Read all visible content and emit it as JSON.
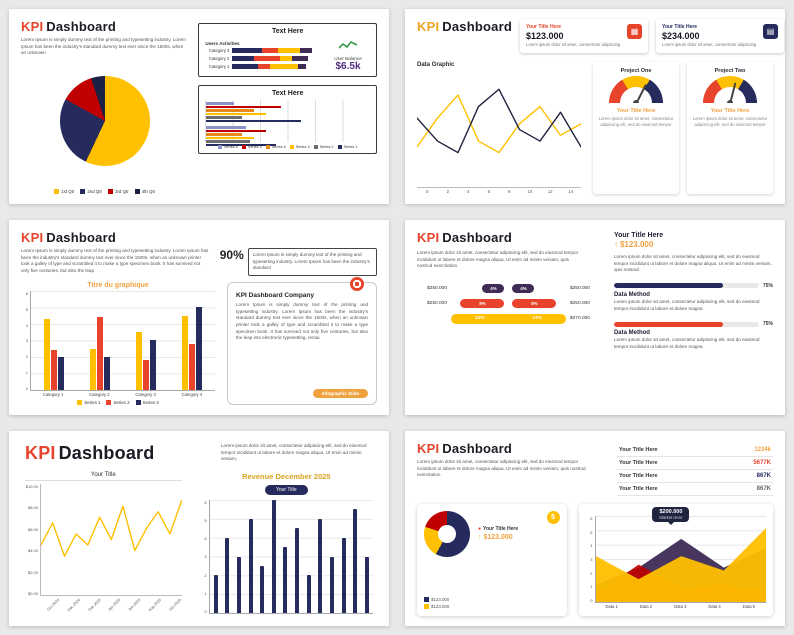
{
  "palette": {
    "red": "#E8432B",
    "dark_red": "#C00000",
    "yellow": "#FFC000",
    "navy": "#252B5C",
    "purple": "#3F2B56",
    "orange": "#F0A241",
    "green": "#3A9B46"
  },
  "slides": {
    "s1": {
      "title_accent": "KPI",
      "title_rest": "Dashboard",
      "title_color": "#E8432B",
      "body": "Lorem Ipsum is simply dummy text of the printing and typesetting industry. Lorem Ipsum has been the industry's standard dummy text ever since the 1500s, when an unknown",
      "box1_title": "Text Here",
      "users_activities_label": "Users Activities",
      "user_balance_label": "User Balance",
      "user_balance_value": "$6.5k",
      "box2_title": "Text Here"
    },
    "s2": {
      "title_accent": "KPI",
      "title_rest": "Dashboard",
      "title_color": "#EFA426",
      "data_graphic_label": "Data Graphic",
      "stats": [
        {
          "title": "Your Title Here",
          "value": "$123.000",
          "body": "Lorem ipsum dolor sit amet, consectetur adipiscing",
          "color": "#E8432B",
          "icon_bg": "#E8432B"
        },
        {
          "title": "Your Title Here",
          "value": "$234.000",
          "body": "Lorem ipsum dolor sit amet, consectetur adipiscing",
          "color": "#252B5C",
          "icon_bg": "#252B5C"
        }
      ],
      "projects": [
        {
          "title": "Project One",
          "subtitle": "Your Title Here",
          "body": "Lorem ipsum dolor sit amet, consectetur adipiscing elit, sed do eiusmod tempor"
        },
        {
          "title": "Project Two",
          "subtitle": "Your Title Here",
          "body": "Lorem ipsum dolor sit amet, consectetur adipiscing elit, sed do eiusmod tempor"
        }
      ]
    },
    "s3": {
      "title_accent": "KPI",
      "title_rest": "Dashboard",
      "title_color": "#E8432B",
      "body": "Lorem Ipsum is simply dummy text of the printing and typesetting industry. Lorem Ipsum has been the industry's standard dummy text ever since the 1500s, when an unknown printer took a galley of type and scrambled it to make a type specimen book. It has survived not only five centuries, but also the leap",
      "percent": "90%",
      "percent_body": "Lorem Ipsum is simply dummy text of the printing and typesetting industry. Lorem Ipsum has been the industry's standard",
      "chart_title": "Titre du graphique",
      "company_title": "KPI Dashboard Company",
      "company_body": "Lorem Ipsum is simply dummy text of the printing and typesetting industry. Lorem Ipsum has been the industry's standard dummy text ever since the 1500s, when an unknown printer took a galley of type and scrambled it to make a type specimen book. It has survived not only five centuries, but also the leap into electronic typesetting, remai",
      "button_label": "Infographic Slide"
    },
    "s4": {
      "title_accent": "KPI",
      "title_rest": "Dashboard",
      "title_color": "#E8432B",
      "header_title": "Your Title Here",
      "header_value": "$123.000",
      "body_left": "Lorem ipsum dolor sit amet, consectetur adipiscing elit, sed do eiusmod tempor incididunt ut labore et dolore magna aliqua. Ut enim ad minim veniam, quis nostrud exercitation",
      "body_right": "Lorem ipsum dolor sit amet, consectetur adipiscing elit, sed do eiusmod tempor incididunt ut labore et dolore magna aliqua. Ut enim ad minim veniam, quis nostrud",
      "methods": [
        {
          "label": "Data Method",
          "body": "Lorem ipsum dolor sit amet, consectetur adipiscing elit, sed do eiusmod tempor incididunt ut labore et dolore magna"
        },
        {
          "label": "Data Method",
          "body": "Lorem ipsum dolor sit amet, consectetur adipiscing elit, sed do eiusmod tempor incididunt ut labore et dolore magna"
        }
      ]
    },
    "s5": {
      "title_accent": "KPI",
      "title_rest": "Dashboard",
      "title_color": "#E8432B",
      "body": "Lorem ipsum dolor sit amet, consectetur adipiscing elit, sed do eiusmod tempor incididunt ut labore et dolore magna aliqua. Ut enim ad minim veniam,",
      "left_chart_title": "Your Title",
      "right_title": "Revenue December 2025",
      "right_pill": "Your Title"
    },
    "s6": {
      "title_accent": "KPI",
      "title_rest": "Dashboard",
      "title_color": "#E8432B",
      "body": "Lorem ipsum dolor sit amet, consectetur adipiscing elit, sed do eiusmod tempor incididunt ut labore et dolore magna aliqua. Ut enim ad minim veniam, quis nostrud exercitation",
      "kpi_rows": [
        {
          "label": "Your Title Here",
          "value": "1234k",
          "color": "#F0A241"
        },
        {
          "label": "Your Title Here",
          "value": "5677K",
          "color": "#E8432B"
        },
        {
          "label": "Your Title Here",
          "value": "867K",
          "color": "#252B5C"
        },
        {
          "label": "Your Title Here",
          "value": "867K",
          "color": "#666666"
        }
      ],
      "donut_title": "Your Title Here",
      "donut_value": "$123.000",
      "donut_legend": [
        {
          "label": "$123.000",
          "color": "#252B5C"
        },
        {
          "label": "$123.000",
          "color": "#FFC000"
        }
      ],
      "tooltip_value": "$200.000",
      "tooltip_label": "Market Here"
    }
  },
  "chart_data": [
    {
      "id": "pie-quarters",
      "type": "pie",
      "slide": 1,
      "labels": [
        "1st Qtr",
        "2nd Qtr",
        "3rd Qtr",
        "4th Qtr"
      ],
      "values": [
        57,
        26,
        12,
        5
      ],
      "colors": [
        "#FFC000",
        "#252B5C",
        "#C00000",
        "#1B2145"
      ],
      "legend": "bottom"
    },
    {
      "id": "users-activities",
      "type": "hbar-stacked",
      "slide": 1,
      "categories": [
        "Category 3",
        "Category 2",
        "Category 1"
      ],
      "series": [
        {
          "name": "Seg A",
          "color": "#252B5C",
          "values": [
            30,
            22,
            26
          ]
        },
        {
          "name": "Seg B",
          "color": "#E8432B",
          "values": [
            16,
            26,
            12
          ]
        },
        {
          "name": "Seg C",
          "color": "#FFC000",
          "values": [
            22,
            12,
            28
          ]
        },
        {
          "name": "Seg D",
          "color": "#3F2B56",
          "values": [
            12,
            16,
            8
          ]
        }
      ]
    },
    {
      "id": "series-hbars",
      "type": "hbar-grouped",
      "slide": 1,
      "categories": [
        "Group 1",
        "Group 2"
      ],
      "series": [
        {
          "name": "Series 6",
          "color": "#8B93C6",
          "values": [
            28,
            40
          ]
        },
        {
          "name": "Series 5",
          "color": "#C00000",
          "values": [
            75,
            60
          ]
        },
        {
          "name": "Series 4",
          "color": "#E8891B",
          "values": [
            48,
            36
          ]
        },
        {
          "name": "Series 3",
          "color": "#FFC000",
          "values": [
            60,
            48
          ]
        },
        {
          "name": "Series 2",
          "color": "#6E6E6E",
          "values": [
            36,
            44
          ]
        },
        {
          "name": "Series 1",
          "color": "#252B5C",
          "values": [
            95,
            70
          ]
        }
      ]
    },
    {
      "id": "data-graphic",
      "type": "line",
      "slide": 2,
      "x_ticks": [
        "0",
        "2",
        "4",
        "6",
        "8",
        "10",
        "12",
        "14"
      ],
      "ymax": 10,
      "series": [
        {
          "name": "Series A",
          "color": "#FFC000",
          "values": [
            3.5,
            6,
            8,
            4,
            3,
            5.5,
            7,
            4.5,
            5.5
          ]
        },
        {
          "name": "Series B",
          "color": "#20243F",
          "values": [
            6,
            4,
            3,
            7,
            8.5,
            5,
            4,
            6.5,
            3.5
          ]
        }
      ]
    },
    {
      "id": "gauge-1",
      "type": "gauge",
      "slide": 2,
      "segments": [
        {
          "color": "#E8432B",
          "value": 33
        },
        {
          "color": "#FFC000",
          "value": 34
        },
        {
          "color": "#252B5C",
          "value": 33
        }
      ],
      "needle": 65
    },
    {
      "id": "gauge-2",
      "type": "gauge",
      "slide": 2,
      "segments": [
        {
          "color": "#E8432B",
          "value": 33
        },
        {
          "color": "#FFC000",
          "value": 34
        },
        {
          "color": "#252B5C",
          "value": 33
        }
      ],
      "needle": 58
    },
    {
      "id": "titre-bars",
      "type": "bar-grouped",
      "slide": 3,
      "title": "Titre du graphique",
      "categories": [
        "Category 1",
        "Category 2",
        "Category 3",
        "Category 4"
      ],
      "ymax": 6,
      "yticks": [
        0,
        1,
        2,
        3,
        4,
        5,
        6
      ],
      "series": [
        {
          "name": "Series 1",
          "color": "#FFC000",
          "values": [
            4.3,
            2.5,
            3.5,
            4.5
          ]
        },
        {
          "name": "Series 2",
          "color": "#E8432B",
          "values": [
            2.4,
            4.4,
            1.8,
            2.8
          ]
        },
        {
          "name": "Series 3",
          "color": "#252B5C",
          "values": [
            2.0,
            2.0,
            3.0,
            5.0
          ]
        }
      ],
      "legend": "bottom"
    },
    {
      "id": "funnel-1",
      "type": "funnel",
      "slide": 4,
      "rows": [
        {
          "left": "$250.000",
          "pills": [
            {
              "label": "4%",
              "value": 4
            },
            {
              "label": "4%",
              "value": 4
            }
          ],
          "right": "$250.000",
          "color": "#3F2B56"
        },
        {
          "left": "$250.000",
          "pills": [
            {
              "label": "8%",
              "value": 8
            },
            {
              "label": "8%",
              "value": 8
            }
          ],
          "right": "$250.000",
          "color": "#E8432B"
        },
        {
          "left": "",
          "pills": [
            {
              "label": "12%",
              "value": 12
            },
            {
              "label": "14%",
              "value": 14
            }
          ],
          "right": "$270.000",
          "color": "#FFC000",
          "merged": true
        }
      ]
    },
    {
      "id": "progress-1",
      "type": "progress",
      "slide": 4,
      "value": 75,
      "label": "75%",
      "color": "#252B5C"
    },
    {
      "id": "progress-2",
      "type": "progress",
      "slide": 4,
      "value": 75,
      "label": "75%",
      "color": "#E8432B"
    },
    {
      "id": "your-title-line",
      "type": "line",
      "slide": 5,
      "y_ticks": [
        "$10.00",
        "$8.00",
        "$6.00",
        "$4.00",
        "$2.00",
        "$0.00"
      ],
      "x_ticks": [
        "Oct 2024",
        "Dec 2024",
        "Feb 2025",
        "Apr 2025",
        "Jun 2025",
        "Aug 2025",
        "Oct 2025"
      ],
      "rotate_x": true,
      "ymax": 10,
      "series": [
        {
          "name": "Your Title",
          "color": "#FFC000",
          "values": [
            4.5,
            6.5,
            3.5,
            5.5,
            4.5,
            7,
            5,
            8,
            4,
            6,
            7.5,
            5.5,
            8.5
          ]
        }
      ]
    },
    {
      "id": "revenue-columns",
      "type": "column",
      "slide": 5,
      "ymax": 6,
      "yticks": [
        0,
        1,
        2,
        3,
        4,
        5,
        6
      ],
      "values": [
        2,
        4,
        3,
        5,
        2.5,
        6,
        3.5,
        4.5,
        2,
        5,
        3,
        4,
        5.5,
        3
      ],
      "color": "#252B5C"
    },
    {
      "id": "donut-6",
      "type": "donut",
      "slide": 6,
      "labels": [
        "$123.000",
        "$123.000",
        "Other"
      ],
      "values": [
        58,
        22,
        20
      ],
      "colors": [
        "#252B5C",
        "#FFC000",
        "#C00000"
      ]
    },
    {
      "id": "area-6",
      "type": "area",
      "slide": 6,
      "x_ticks": [
        "Data 1",
        "Data 2",
        "Data 3",
        "Data 4",
        "Data 5"
      ],
      "ymax": 6,
      "yticks": [
        0,
        1,
        2,
        3,
        4,
        5,
        6
      ],
      "series": [
        {
          "name": "Series A",
          "color": "#3F2B56",
          "opacity": 0.95,
          "values": [
            1.2,
            2.4,
            4.4,
            2.4,
            3.8
          ]
        },
        {
          "name": "Series B",
          "color": "#C00000",
          "opacity": 0.9,
          "values": [
            0.6,
            2.6,
            1.0,
            1.2,
            0.8
          ]
        },
        {
          "name": "Series C",
          "color": "#FFC000",
          "opacity": 0.95,
          "values": [
            3.2,
            1.6,
            3.2,
            2.2,
            5.2
          ]
        }
      ],
      "tooltip": {
        "value": "$200.000",
        "label": "Market Here"
      }
    }
  ]
}
